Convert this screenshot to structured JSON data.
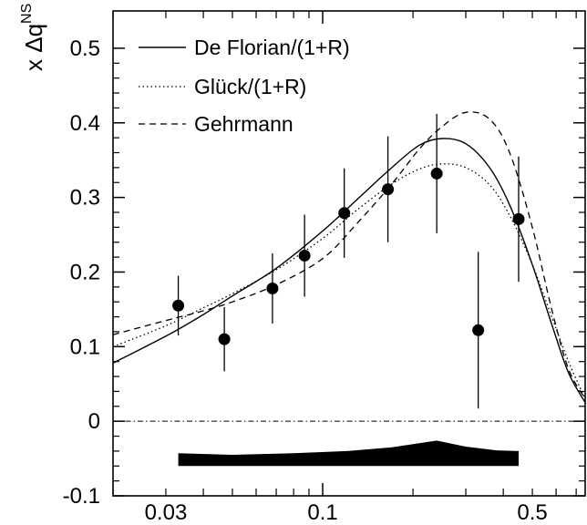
{
  "chart_data": {
    "type": "scatter",
    "title": "",
    "ylabel": {
      "main": "x Δq",
      "superscript": "NS"
    },
    "xlabel": "",
    "xscale": "log",
    "xlim": [
      0.02,
      0.75
    ],
    "ylim": [
      -0.1,
      0.55
    ],
    "x_ticks": [
      {
        "value": 0.03,
        "label": "0.03"
      },
      {
        "value": 0.1,
        "label": "0.1"
      },
      {
        "value": 0.5,
        "label": "0.5"
      }
    ],
    "y_ticks": [
      {
        "value": -0.1,
        "label": "-0.1"
      },
      {
        "value": 0,
        "label": "0"
      },
      {
        "value": 0.1,
        "label": "0.1"
      },
      {
        "value": 0.2,
        "label": "0.2"
      },
      {
        "value": 0.3,
        "label": "0.3"
      },
      {
        "value": 0.4,
        "label": "0.4"
      },
      {
        "value": 0.5,
        "label": "0.5"
      }
    ],
    "legend_position": "top-left",
    "points": [
      {
        "x": 0.033,
        "y": 0.155,
        "err": 0.04
      },
      {
        "x": 0.047,
        "y": 0.11,
        "err": 0.043
      },
      {
        "x": 0.068,
        "y": 0.178,
        "err": 0.047
      },
      {
        "x": 0.087,
        "y": 0.222,
        "err": 0.055
      },
      {
        "x": 0.118,
        "y": 0.279,
        "err": 0.06
      },
      {
        "x": 0.165,
        "y": 0.311,
        "err": 0.071
      },
      {
        "x": 0.24,
        "y": 0.332,
        "err": 0.08
      },
      {
        "x": 0.33,
        "y": 0.122,
        "err": 0.105
      },
      {
        "x": 0.45,
        "y": 0.271,
        "err": 0.084
      }
    ],
    "series": [
      {
        "name": "De Florian/(1+R)",
        "style": "solid",
        "x": [
          0.02,
          0.03,
          0.04,
          0.05,
          0.07,
          0.1,
          0.13,
          0.17,
          0.21,
          0.25,
          0.3,
          0.36,
          0.42,
          0.5,
          0.58,
          0.66,
          0.75
        ],
        "y": [
          0.078,
          0.114,
          0.143,
          0.168,
          0.205,
          0.255,
          0.297,
          0.34,
          0.37,
          0.379,
          0.372,
          0.34,
          0.29,
          0.21,
          0.13,
          0.065,
          0.025
        ]
      },
      {
        "name": "Glück/(1+R)",
        "style": "dotted",
        "x": [
          0.02,
          0.03,
          0.04,
          0.05,
          0.07,
          0.1,
          0.13,
          0.17,
          0.21,
          0.25,
          0.3,
          0.36,
          0.42,
          0.5,
          0.58,
          0.66,
          0.75
        ],
        "y": [
          0.1,
          0.128,
          0.152,
          0.171,
          0.203,
          0.245,
          0.283,
          0.318,
          0.338,
          0.345,
          0.34,
          0.317,
          0.276,
          0.21,
          0.14,
          0.08,
          0.03
        ]
      },
      {
        "name": "Gehrmann",
        "style": "dashed",
        "x": [
          0.02,
          0.03,
          0.04,
          0.05,
          0.07,
          0.1,
          0.13,
          0.17,
          0.21,
          0.25,
          0.3,
          0.36,
          0.42,
          0.5,
          0.58,
          0.66,
          0.75
        ],
        "y": [
          0.116,
          0.135,
          0.148,
          0.16,
          0.183,
          0.218,
          0.265,
          0.318,
          0.365,
          0.395,
          0.414,
          0.405,
          0.36,
          0.26,
          0.15,
          0.07,
          0.03
        ]
      }
    ],
    "zero_line": {
      "y": 0,
      "style": "dash-dot"
    },
    "systematic_band": {
      "x": [
        0.033,
        0.05,
        0.08,
        0.12,
        0.17,
        0.24,
        0.3,
        0.38,
        0.45
      ],
      "top": [
        -0.043,
        -0.045,
        -0.043,
        -0.04,
        -0.035,
        -0.026,
        -0.034,
        -0.039,
        -0.04
      ],
      "bottom": [
        -0.06,
        -0.06,
        -0.06,
        -0.06,
        -0.06,
        -0.06,
        -0.06,
        -0.06,
        -0.06
      ]
    }
  },
  "colors": {
    "ink": "#000000",
    "background": "#ffffff"
  }
}
